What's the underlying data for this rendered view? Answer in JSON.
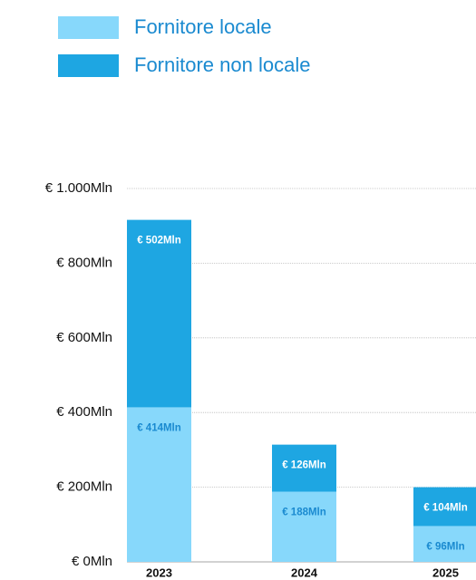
{
  "chart_data": {
    "type": "stacked_bar",
    "categories": [
      "2023",
      "2024",
      "2025"
    ],
    "series": [
      {
        "name": "Fornitore locale",
        "color": "#87d8fb",
        "label_color": "#1a8ad0",
        "values": [
          414,
          188,
          96
        ],
        "value_labels": [
          "€ 414Mln",
          "€ 188Mln",
          "€ 96Mln"
        ]
      },
      {
        "name": "Fornitore non locale",
        "color": "#1ea6e2",
        "label_color": "#ffffff",
        "values": [
          502,
          126,
          104
        ],
        "value_labels": [
          "€ 502Mln",
          "€ 126Mln",
          "€ 104Mln"
        ]
      }
    ],
    "ylim": [
      0,
      1000
    ],
    "yticks": [
      {
        "value": 0,
        "label": "€ 0Mln"
      },
      {
        "value": 200,
        "label": "€ 200Mln"
      },
      {
        "value": 400,
        "label": "€ 400Mln"
      },
      {
        "value": 600,
        "label": "€ 600Mln"
      },
      {
        "value": 800,
        "label": "€ 800Mln"
      },
      {
        "value": 1000,
        "label": "€ 1.000Mln"
      }
    ],
    "grid": true,
    "legend": "top-left"
  }
}
